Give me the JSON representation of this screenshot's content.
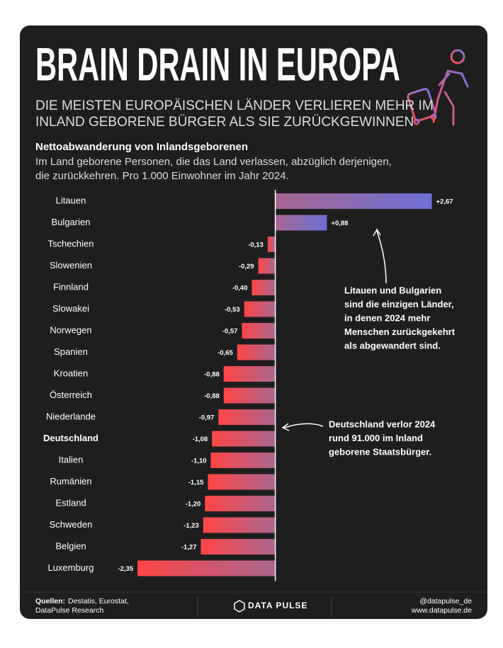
{
  "chart_data": {
    "type": "bar",
    "orientation": "horizontal",
    "title": "BRAIN DRAIN IN EUROPA",
    "subtitle": [
      "DIE MEISTEN EUROPÄISCHEN LÄNDER VERLIEREN MEHR IM",
      "INLAND GEBORENE BÜRGER ALS SIE ZURÜCKGEWINNEN"
    ],
    "chart_title": "Nettoabwanderung von Inlandsgeborenen",
    "description": [
      "Im Land geborene Personen, die das Land verlassen, abzüglich derjenigen,",
      "die zurückkehren. Pro 1.000 Einwohner im Jahr 2024."
    ],
    "categories": [
      "Litauen",
      "Bulgarien",
      "Tschechien",
      "Slowenien",
      "Finnland",
      "Slowakei",
      "Norwegen",
      "Spanien",
      "Kroatien",
      "Österreich",
      "Niederlande",
      "Deutschland",
      "Italien",
      "Rumänien",
      "Estland",
      "Schweden",
      "Belgien",
      "Luxemburg"
    ],
    "values": [
      2.67,
      0.88,
      -0.13,
      -0.29,
      -0.4,
      -0.53,
      -0.57,
      -0.65,
      -0.88,
      -0.88,
      -0.97,
      -1.08,
      -1.1,
      -1.15,
      -1.2,
      -1.23,
      -1.27,
      -2.35
    ],
    "value_labels": [
      "+2,67",
      "+0,88",
      "-0,13",
      "-0,29",
      "-0,40",
      "-0,53",
      "-0,57",
      "-0,65",
      "-0,88",
      "-0,88",
      "-0,97",
      "-1,08",
      "-1,10",
      "-1,15",
      "-1,20",
      "-1,23",
      "-1,27",
      "-2,35"
    ],
    "highlight_index": 11,
    "xlim": [
      -2.4,
      2.7
    ],
    "positive_color": "#6b70d6",
    "negative_color": "#ff4545",
    "zero_color": "#a8668f",
    "annotations": [
      {
        "lines": [
          "Litauen und Bulgarien",
          "sind die einzigen Länder,",
          "in denen 2024 mehr",
          "Menschen zurückgekehrt",
          "als abgewandert sind."
        ]
      },
      {
        "lines": [
          "Deutschland verlor 2024",
          "rund 91.000 im Inland",
          "geborene Staatsbürger."
        ]
      }
    ]
  },
  "footer": {
    "sources_label": "Quellen:",
    "sources": [
      "Destatis, Eurostat,",
      "DataPulse Research"
    ],
    "logo": "DATA PULSE",
    "handle": "@datapulse_de",
    "website": "www.datapulse.de"
  }
}
